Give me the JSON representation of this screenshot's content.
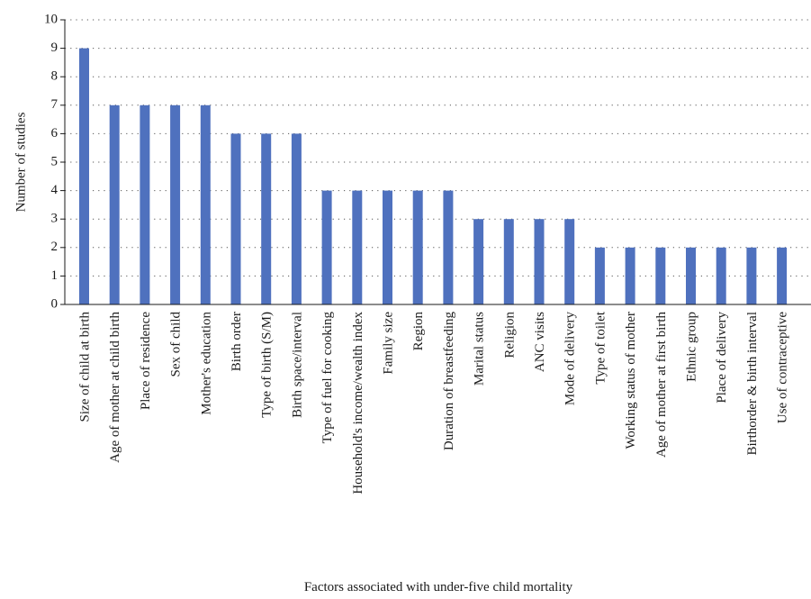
{
  "chart_data": {
    "type": "bar",
    "title": "",
    "xlabel": "Factors associated with under-five child mortality",
    "ylabel": "Number of studies",
    "ylim": [
      0,
      10
    ],
    "yticks": [
      0,
      1,
      2,
      3,
      4,
      5,
      6,
      7,
      8,
      9,
      10
    ],
    "grid": "horizontal dotted",
    "legend": "none",
    "bar_color": "#4f71be",
    "categories": [
      "Size of child at birth",
      "Age of mother at child birth",
      "Place of residence",
      "Sex of child",
      "Mother's education",
      "Birth order",
      "Type of birth (S/M)",
      "Birth space/interval",
      "Type of fuel for cooking",
      "Household's income/wealth index",
      "Family size",
      "Region",
      "Duration of breastfeeding",
      "Marital status",
      "Religion",
      "ANC visits",
      "Mode of delivery",
      "Type of toilet",
      "Working status of mother",
      "Age of mother at first birth",
      "Ethnic group",
      "Place of delivery",
      "Birthorder & birth interval",
      "Use of contraceptive"
    ],
    "values": [
      9,
      7,
      7,
      7,
      7,
      6,
      6,
      6,
      4,
      4,
      4,
      4,
      4,
      3,
      3,
      3,
      3,
      2,
      2,
      2,
      2,
      2,
      2,
      2
    ]
  }
}
